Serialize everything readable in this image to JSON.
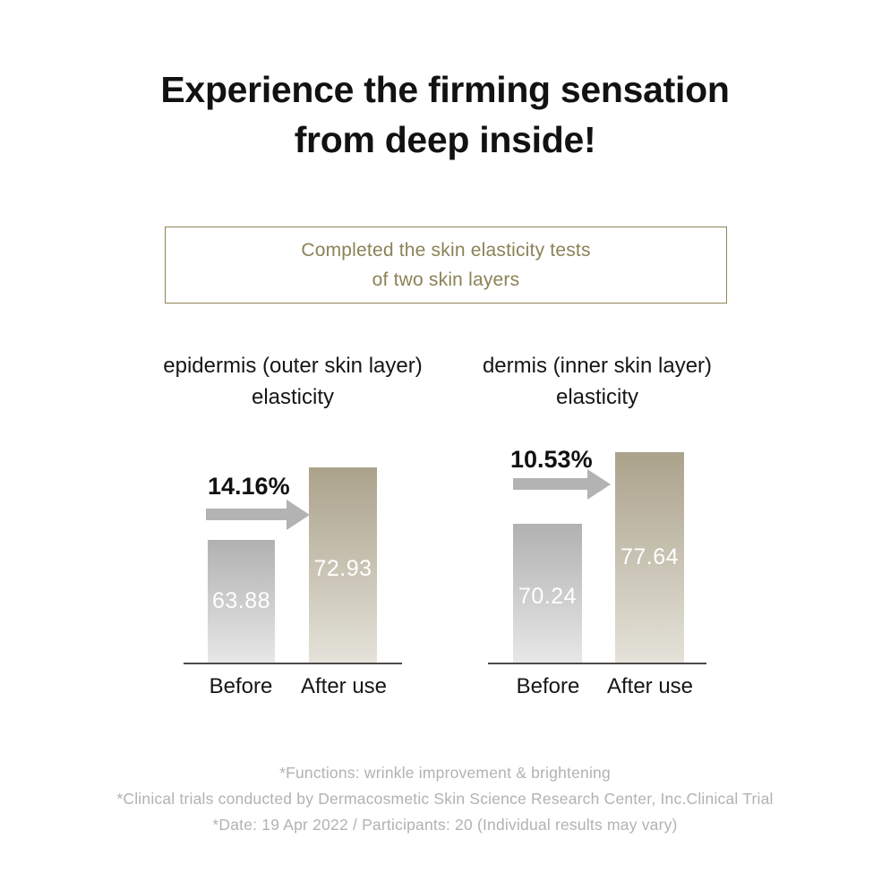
{
  "header": {
    "title_line1": "Experience the firming sensation",
    "title_line2": "from deep inside!"
  },
  "banner": {
    "line1": "Completed the skin elasticity tests",
    "line2": "of two skin layers"
  },
  "chart_data": [
    {
      "type": "bar",
      "title": "epidermis (outer skin layer) elasticity",
      "title_line1": "epidermis (outer skin layer)",
      "title_line2": "elasticity",
      "categories": [
        "Before",
        "After use"
      ],
      "values": [
        63.88,
        72.93
      ],
      "value_labels": [
        "63.88",
        "72.93"
      ],
      "change_label": "14.16%",
      "annotation": "gray arrow pointing from Before to After use",
      "ylim": [
        0,
        100
      ],
      "grid": "off",
      "legend": "none",
      "axis": "baseline only, no ticks"
    },
    {
      "type": "bar",
      "title": "dermis (inner skin layer) elasticity",
      "title_line1": "dermis (inner skin layer)",
      "title_line2": "elasticity",
      "categories": [
        "Before",
        "After use"
      ],
      "values": [
        70.24,
        77.64
      ],
      "value_labels": [
        "70.24",
        "77.64"
      ],
      "change_label": "10.53%",
      "annotation": "gray arrow pointing from Before to After use",
      "ylim": [
        0,
        100
      ],
      "grid": "off",
      "legend": "none",
      "axis": "baseline only, no ticks"
    }
  ],
  "footnotes": [
    "*Functions: wrinkle improvement & brightening",
    "*Clinical trials conducted by Dermacosmetic Skin Science Research Center, Inc.Clinical Trial",
    "*Date: 19 Apr 2022 / Participants: 20 (Individual results may vary)"
  ],
  "colors": {
    "accent_olive_text": "#8b8257",
    "banner_border": "#8d8459",
    "bar_gray_top": "#b1b1b2",
    "bar_gray_bottom": "#e7e7e7",
    "bar_khaki_top": "#aba28b",
    "bar_khaki_bottom": "#e4e2d9",
    "arrow": "#b3b3b3",
    "bar_value_text": "#ffffff",
    "axis_line": "#4a4a4a",
    "footnote_text": "#b2b2b2",
    "title_text": "#121212"
  }
}
